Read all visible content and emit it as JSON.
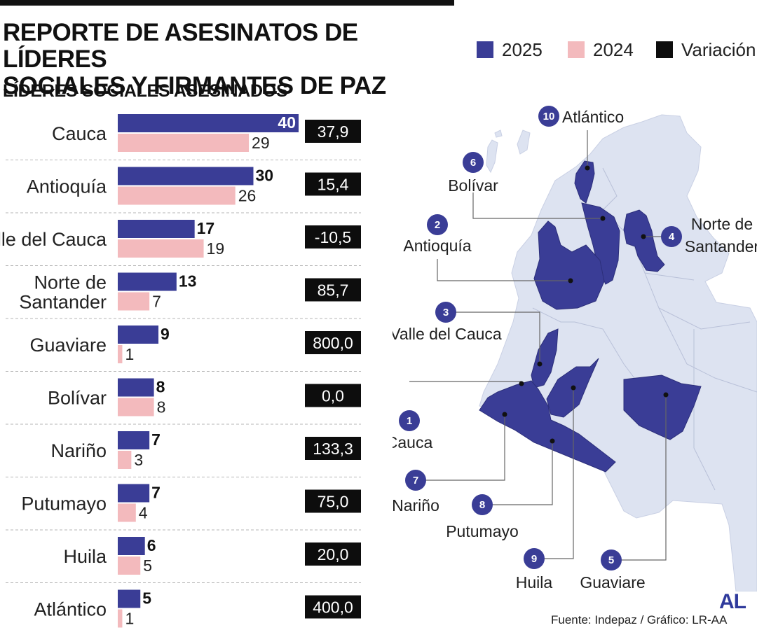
{
  "header": {
    "title_line1": "REPORTE DE ASESINATOS DE LÍDERES",
    "title_line2": "SOCIALES Y FIRMANTES DE PAZ",
    "subtitle": "LÍDERES SOCIALES ASESINADOS"
  },
  "legend": [
    {
      "label": "2025",
      "color": "#3a3d96"
    },
    {
      "label": "2024",
      "color": "#f3babd"
    },
    {
      "label": "Variación",
      "color": "#0d0d0d"
    }
  ],
  "colors": {
    "bar_2025": "#3a3d96",
    "bar_2024": "#f3babd",
    "variation_box": "#0d0d0d",
    "map_base": "#dde3f1",
    "map_highlight": "#3a3d96",
    "leader_line": "#666666"
  },
  "chart_data": {
    "type": "bar",
    "title": "LÍDERES SOCIALES ASESINADOS",
    "orientation": "horizontal",
    "categories": [
      "Cauca",
      "Antioquía",
      "Valle del Cauca",
      "Norte de Santander",
      "Guaviare",
      "Bolívar",
      "Nariño",
      "Putumayo",
      "Huila",
      "Atlántico"
    ],
    "series": [
      {
        "name": "2025",
        "values": [
          40,
          30,
          17,
          13,
          9,
          8,
          7,
          7,
          6,
          5
        ]
      },
      {
        "name": "2024",
        "values": [
          29,
          26,
          19,
          7,
          1,
          8,
          3,
          4,
          5,
          1
        ]
      }
    ],
    "variation_label": "Variación",
    "variation": [
      "37,9",
      "15,4",
      "-10,5",
      "85,7",
      "800,0",
      "0,0",
      "133,3",
      "75,0",
      "20,0",
      "400,0"
    ],
    "xlim": [
      0,
      40
    ]
  },
  "map": {
    "regions": [
      {
        "num": "1",
        "name": "Cauca"
      },
      {
        "num": "2",
        "name": "Antioquía"
      },
      {
        "num": "3",
        "name": "Valle del Cauca"
      },
      {
        "num": "4",
        "name": "Norte de Santander"
      },
      {
        "num": "5",
        "name": "Guaviare"
      },
      {
        "num": "6",
        "name": "Bolívar"
      },
      {
        "num": "7",
        "name": "Nariño"
      },
      {
        "num": "8",
        "name": "Putumayo"
      },
      {
        "num": "9",
        "name": "Huila"
      },
      {
        "num": "10",
        "name": "Atlántico"
      }
    ]
  },
  "footer": {
    "source": "Fuente: Indepaz / Gráfico: LR-AA",
    "logo": "AL"
  }
}
